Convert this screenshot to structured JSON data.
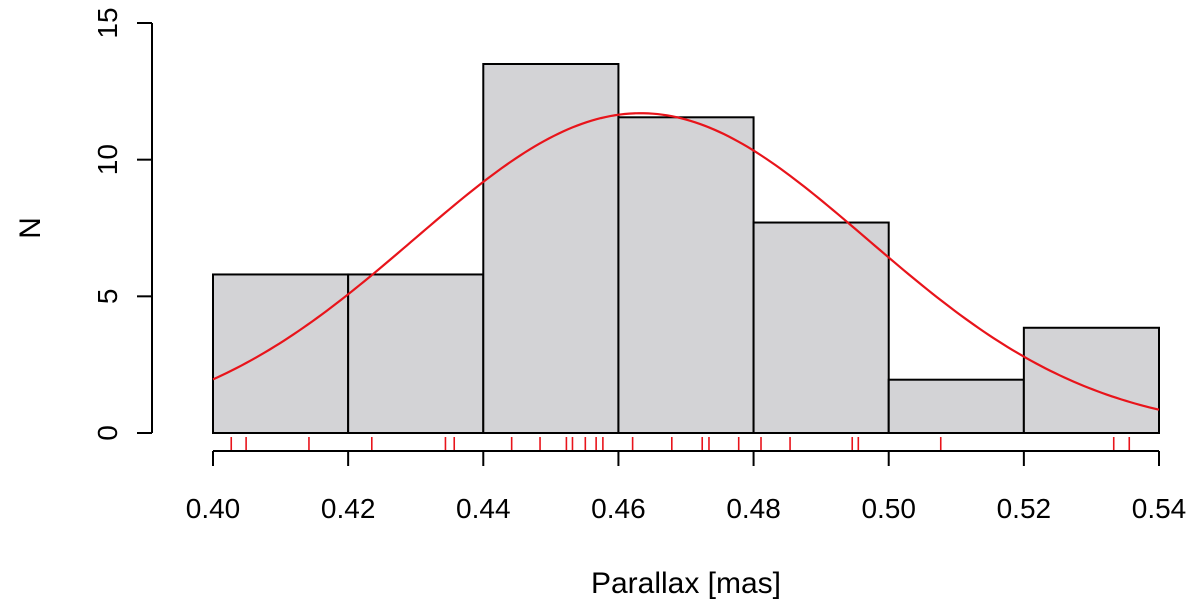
{
  "chart_data": {
    "type": "bar",
    "title": "",
    "xlabel": "Parallax [mas]",
    "ylabel": "N",
    "xlim": [
      0.4,
      0.54
    ],
    "ylim": [
      0,
      15
    ],
    "x_ticks": [
      "0.40",
      "0.42",
      "0.44",
      "0.46",
      "0.48",
      "0.50",
      "0.52",
      "0.54"
    ],
    "y_ticks": [
      "0",
      "5",
      "10",
      "15"
    ],
    "bins": [
      {
        "x0": 0.4,
        "x1": 0.42,
        "value": 5.8
      },
      {
        "x0": 0.42,
        "x1": 0.44,
        "value": 5.8
      },
      {
        "x0": 0.44,
        "x1": 0.46,
        "value": 13.5
      },
      {
        "x0": 0.46,
        "x1": 0.48,
        "value": 11.55
      },
      {
        "x0": 0.48,
        "x1": 0.5,
        "value": 7.7
      },
      {
        "x0": 0.5,
        "x1": 0.52,
        "value": 1.95
      },
      {
        "x0": 0.52,
        "x1": 0.54,
        "value": 3.85
      }
    ],
    "density_curve": {
      "color": "#e8141b",
      "mean": 0.4633,
      "sd": 0.0335,
      "peak": 11.7
    },
    "rug": {
      "color": "#e8141b",
      "values": [
        0.4027,
        0.4049,
        0.4142,
        0.4235,
        0.4344,
        0.4357,
        0.4442,
        0.4484,
        0.4523,
        0.4532,
        0.4551,
        0.4567,
        0.4577,
        0.4621,
        0.4679,
        0.4724,
        0.4734,
        0.4778,
        0.4811,
        0.4854,
        0.4946,
        0.4955,
        0.5077,
        0.5333,
        0.5356
      ]
    },
    "grid": false,
    "colors": {
      "bar_fill": "#d3d3d6",
      "bar_stroke": "#000000",
      "curve": "#e8141b"
    }
  }
}
